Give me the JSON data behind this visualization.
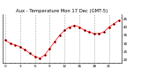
{
  "title": "Aux - Temperature Mon 17 Dec (GMT-5)",
  "background_color": "#ffffff",
  "plot_bg_color": "#ffffff",
  "grid_color": "#888888",
  "line_color": "#ff0000",
  "marker_color": "#000000",
  "hours": [
    0,
    1,
    2,
    3,
    4,
    5,
    6,
    7,
    8,
    9,
    10,
    11,
    12,
    13,
    14,
    15,
    16,
    17,
    18,
    19,
    20,
    21,
    22,
    23
  ],
  "temps": [
    32,
    30,
    29,
    28,
    26,
    24,
    22,
    21,
    23,
    27,
    31,
    35,
    38,
    40,
    41,
    40,
    38,
    37,
    36,
    36,
    37,
    40,
    42,
    44
  ],
  "ylim_min": 18,
  "ylim_max": 48,
  "yticks": [
    20,
    25,
    30,
    35,
    40,
    45
  ],
  "vgrid_hours": [
    0,
    3,
    6,
    9,
    12,
    15,
    18,
    21,
    24
  ],
  "xtick_labels": [
    "0",
    "",
    "",
    "3",
    "",
    "",
    "6",
    "",
    "",
    "9",
    "",
    "",
    "12",
    "",
    "",
    "15",
    "",
    "",
    "18",
    "",
    "",
    "21",
    "",
    ""
  ],
  "title_fontsize": 3.8,
  "tick_fontsize": 3.0,
  "dot_size": 3.5,
  "black_dot_size": 1.5,
  "line_width": 0.5
}
